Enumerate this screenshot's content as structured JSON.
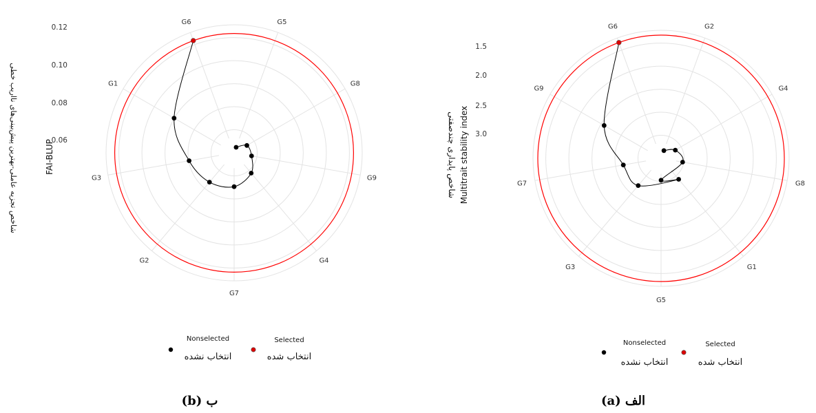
{
  "chart_data": [
    {
      "type": "radar",
      "panel": "b",
      "caption": "ب (b)",
      "ylabel": "FAI-BLUP",
      "ylabel_fa": "شاخص تجزیه عاملی-بهترین پیش‌بینی‌های نااریب خطی",
      "ytick_labels": [
        "0.12",
        "0.10",
        "0.08",
        "0.06"
      ],
      "angular_labels": [
        "G6",
        "G5",
        "G8",
        "G9",
        "G4",
        "G7",
        "G2",
        "G3",
        "G1"
      ],
      "values": {
        "G6": 0.121,
        "G1": 0.087,
        "G3": 0.071,
        "G2": 0.066,
        "G7": 0.063,
        "G4": 0.058,
        "G9": 0.052,
        "G8": 0.05,
        "G5": 0.044
      },
      "selected": [
        "G6"
      ],
      "cutoff_line": "red circle through G6",
      "grid": true,
      "legend": {
        "nonselected": "Nonselected",
        "nonselected_fa": "انتخاب نشده",
        "selected": "Selected",
        "selected_fa": "انتخاب شده",
        "position": "bottom"
      }
    },
    {
      "type": "radar",
      "panel": "a",
      "caption": "الف (a)",
      "ylabel": "Multitrait stability index",
      "ylabel_fa": "شاخص پایداری چندصفتی",
      "ytick_labels": [
        "1.5",
        "2.0",
        "2.5",
        "3.0"
      ],
      "angular_labels": [
        "G6",
        "G2",
        "G4",
        "G8",
        "G1",
        "G5",
        "G3",
        "G7",
        "G9"
      ],
      "values": {
        "G6": 1.3,
        "G9": 2.35,
        "G7": 2.85,
        "G3": 2.9,
        "G5": 3.15,
        "G1": 3.05,
        "G8": 3.15,
        "G4": 3.25,
        "G2": 3.4
      },
      "selected": [
        "G6"
      ],
      "cutoff_line": "red circle through G6",
      "grid": true,
      "legend": {
        "nonselected": "Nonselected",
        "nonselected_fa": "انتخاب نشده",
        "selected": "Selected",
        "selected_fa": "انتخاب شده",
        "position": "bottom"
      }
    }
  ],
  "colors": {
    "selected": "#dd0000",
    "nonselected": "#000000",
    "cutoff": "#ff0000",
    "grid": "#e3e3e3",
    "curve": "#000000"
  }
}
